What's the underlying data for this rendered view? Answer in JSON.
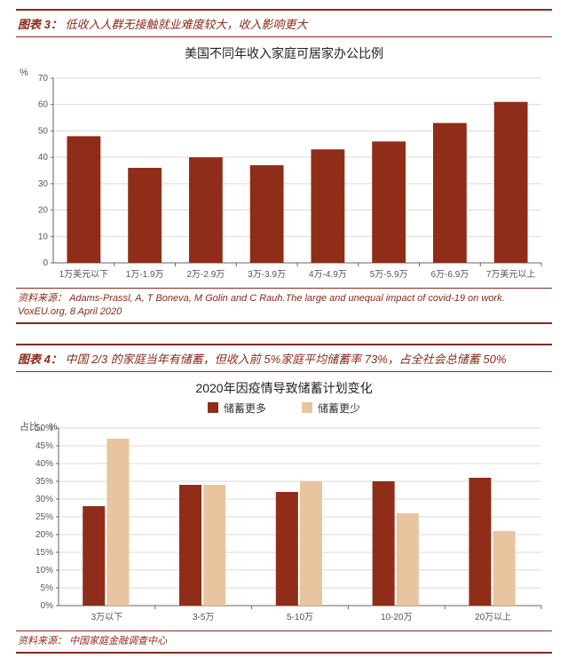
{
  "chart3": {
    "header_prefix": "图表 3：",
    "header_text": "低收入人群无接触就业难度较大，收入影响更大",
    "title": "美国不同年收入家庭可居家办公比例",
    "y_unit": "%",
    "type": "bar",
    "categories": [
      "1万美元以下",
      "1万-1.9万",
      "2万-2.9万",
      "3万-3.9万",
      "4万-4.9万",
      "5万-5.9万",
      "6万-6.9万",
      "7万美元以上"
    ],
    "values": [
      48,
      36,
      40,
      37,
      43,
      46,
      53,
      61
    ],
    "bar_color": "#8f2d18",
    "ylim": [
      0,
      70
    ],
    "ytick_step": 10,
    "grid_color": "#d9d9d9",
    "axis_color": "#666666",
    "label_fontsize": 10,
    "source_label": "资料来源：",
    "source_text": "Adams-Prassl, A, T Boneva, M Golin and C Rauh.The large and unequal impact of covid-19 on work. VoxEU.org, 8 April 2020"
  },
  "chart4": {
    "header_prefix": "图表 4：",
    "header_text": "中国 2/3 的家庭当年有储蓄，但收入前 5%家庭平均储蓄率 73%，占全社会总储蓄 50%",
    "title": "2020年因疫情导致储蓄计划变化",
    "y_unit": "占比，%",
    "type": "grouped-bar",
    "categories": [
      "3万以下",
      "3-5万",
      "5-10万",
      "10-20万",
      "20万以上"
    ],
    "series": [
      {
        "name": "储蓄更多",
        "color": "#8f2d18",
        "values": [
          28,
          34,
          32,
          35,
          36
        ]
      },
      {
        "name": "储蓄更少",
        "color": "#e8c59e",
        "values": [
          47,
          34,
          35,
          26,
          21
        ]
      }
    ],
    "ylim": [
      0,
      50
    ],
    "ytick_step": 5,
    "tick_suffix": "%",
    "grid_color": "#d9d9d9",
    "axis_color": "#666666",
    "label_fontsize": 10,
    "source_label": "资料来源：",
    "source_text": "中国家庭金融调查中心"
  }
}
